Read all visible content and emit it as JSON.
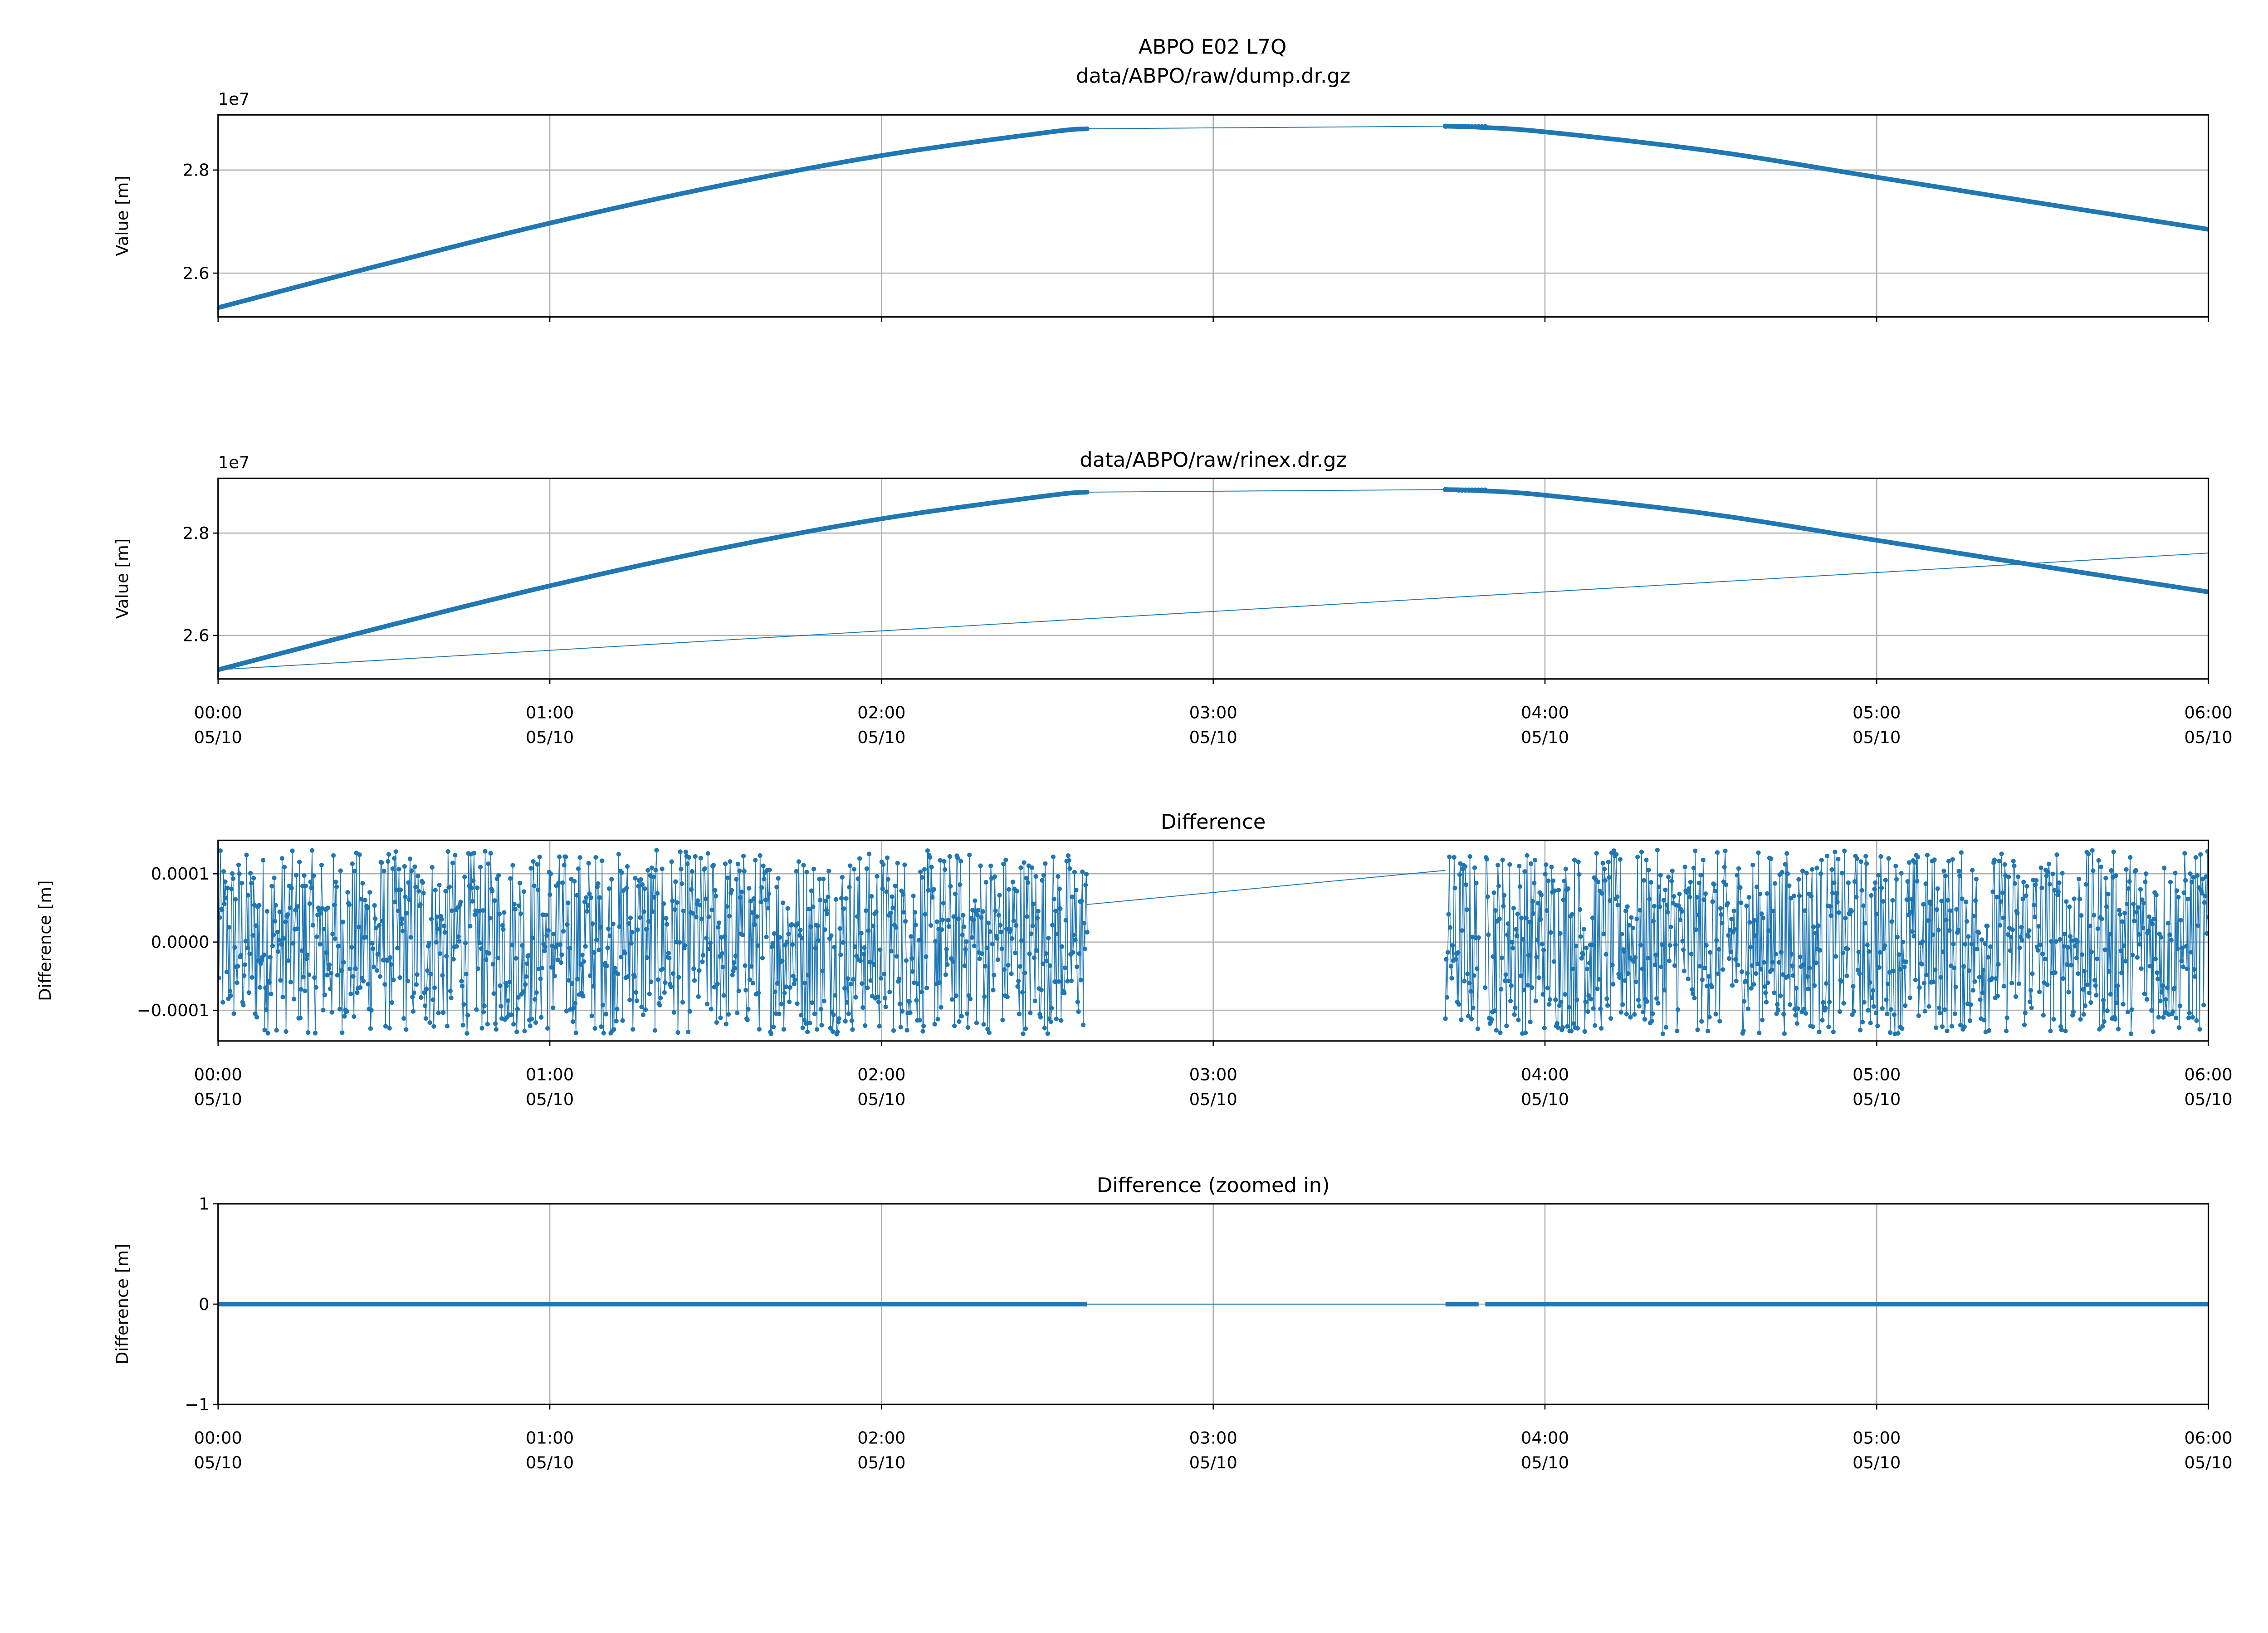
{
  "suptitle": "ABPO E02 L7Q",
  "colors": {
    "series": "#1f77b4",
    "grid": "#b0b0b0"
  },
  "chart_data": [
    {
      "type": "line",
      "title": "data/ABPO/raw/dump.dr.gz",
      "ylabel": "Value [m]",
      "offset_label": "1e7",
      "xlim_hours": [
        0,
        6
      ],
      "ylim": [
        2.515,
        2.907
      ],
      "yticks": [
        {
          "v": 2.6,
          "label": "2.6"
        },
        {
          "v": 2.8,
          "label": "2.8"
        }
      ],
      "xtick_labels_shown": false,
      "x_hours": [
        0,
        0.5,
        1,
        1.5,
        2,
        2.5,
        2.62,
        3.7,
        3.8,
        4,
        4.5,
        5,
        5.5,
        6
      ],
      "values_1e7": [
        2.533,
        2.617,
        2.697,
        2.768,
        2.828,
        2.873,
        2.88,
        2.885,
        2.883,
        2.874,
        2.837,
        2.786,
        2.735,
        2.685
      ],
      "data_gap_hours": [
        2.62,
        3.7
      ]
    },
    {
      "type": "line",
      "title": "data/ABPO/raw/rinex.dr.gz",
      "ylabel": "Value [m]",
      "offset_label": "1e7",
      "xlim_hours": [
        0,
        6
      ],
      "ylim": [
        2.515,
        2.907
      ],
      "yticks": [
        {
          "v": 2.6,
          "label": "2.6"
        },
        {
          "v": 2.8,
          "label": "2.8"
        }
      ],
      "xtick_labels_shown": true,
      "x_hours": [
        0,
        0.5,
        1,
        1.5,
        2,
        2.5,
        2.62,
        3.7,
        3.8,
        4,
        4.5,
        5,
        5.5,
        6
      ],
      "values_1e7": [
        2.533,
        2.617,
        2.697,
        2.768,
        2.828,
        2.873,
        2.88,
        2.885,
        2.883,
        2.874,
        2.837,
        2.786,
        2.735,
        2.685
      ],
      "data_gap_hours": [
        2.62,
        3.7
      ],
      "extra_thin_line": {
        "x_hours": [
          0,
          6
        ],
        "values_1e7": [
          2.533,
          2.761
        ]
      }
    },
    {
      "type": "scatter",
      "title": "Difference",
      "ylabel": "Difference [m]",
      "xlim_hours": [
        0,
        6
      ],
      "ylim": [
        -0.000145,
        0.000149
      ],
      "yticks": [
        {
          "v": -0.0001,
          "label": "−0.0001"
        },
        {
          "v": 0,
          "label": "0.0000"
        },
        {
          "v": 0.0001,
          "label": "0.0001"
        }
      ],
      "noise_amplitude": 0.000135,
      "segments_hours": [
        [
          0,
          2.62
        ],
        [
          3.7,
          3.8
        ],
        [
          3.82,
          6
        ]
      ],
      "connector": {
        "x_hours": [
          2.62,
          3.7
        ],
        "values": [
          5.5e-05,
          0.000105
        ]
      }
    },
    {
      "type": "line",
      "title": "Difference (zoomed in)",
      "ylabel": "Difference [m]",
      "xlim_hours": [
        0,
        6
      ],
      "ylim": [
        -1,
        1
      ],
      "yticks": [
        {
          "v": -1,
          "label": "−1"
        },
        {
          "v": 0,
          "label": "0"
        },
        {
          "v": 1,
          "label": "1"
        }
      ],
      "segments_hours": [
        [
          0,
          2.62
        ],
        [
          3.7,
          3.8
        ],
        [
          3.82,
          6
        ]
      ],
      "value": 0
    }
  ],
  "xticks": [
    {
      "h": 0,
      "time": "00:00",
      "date": "05/10"
    },
    {
      "h": 1,
      "time": "01:00",
      "date": "05/10"
    },
    {
      "h": 2,
      "time": "02:00",
      "date": "05/10"
    },
    {
      "h": 3,
      "time": "03:00",
      "date": "05/10"
    },
    {
      "h": 4,
      "time": "04:00",
      "date": "05/10"
    },
    {
      "h": 5,
      "time": "05:00",
      "date": "05/10"
    },
    {
      "h": 6,
      "time": "06:00",
      "date": "05/10"
    }
  ]
}
